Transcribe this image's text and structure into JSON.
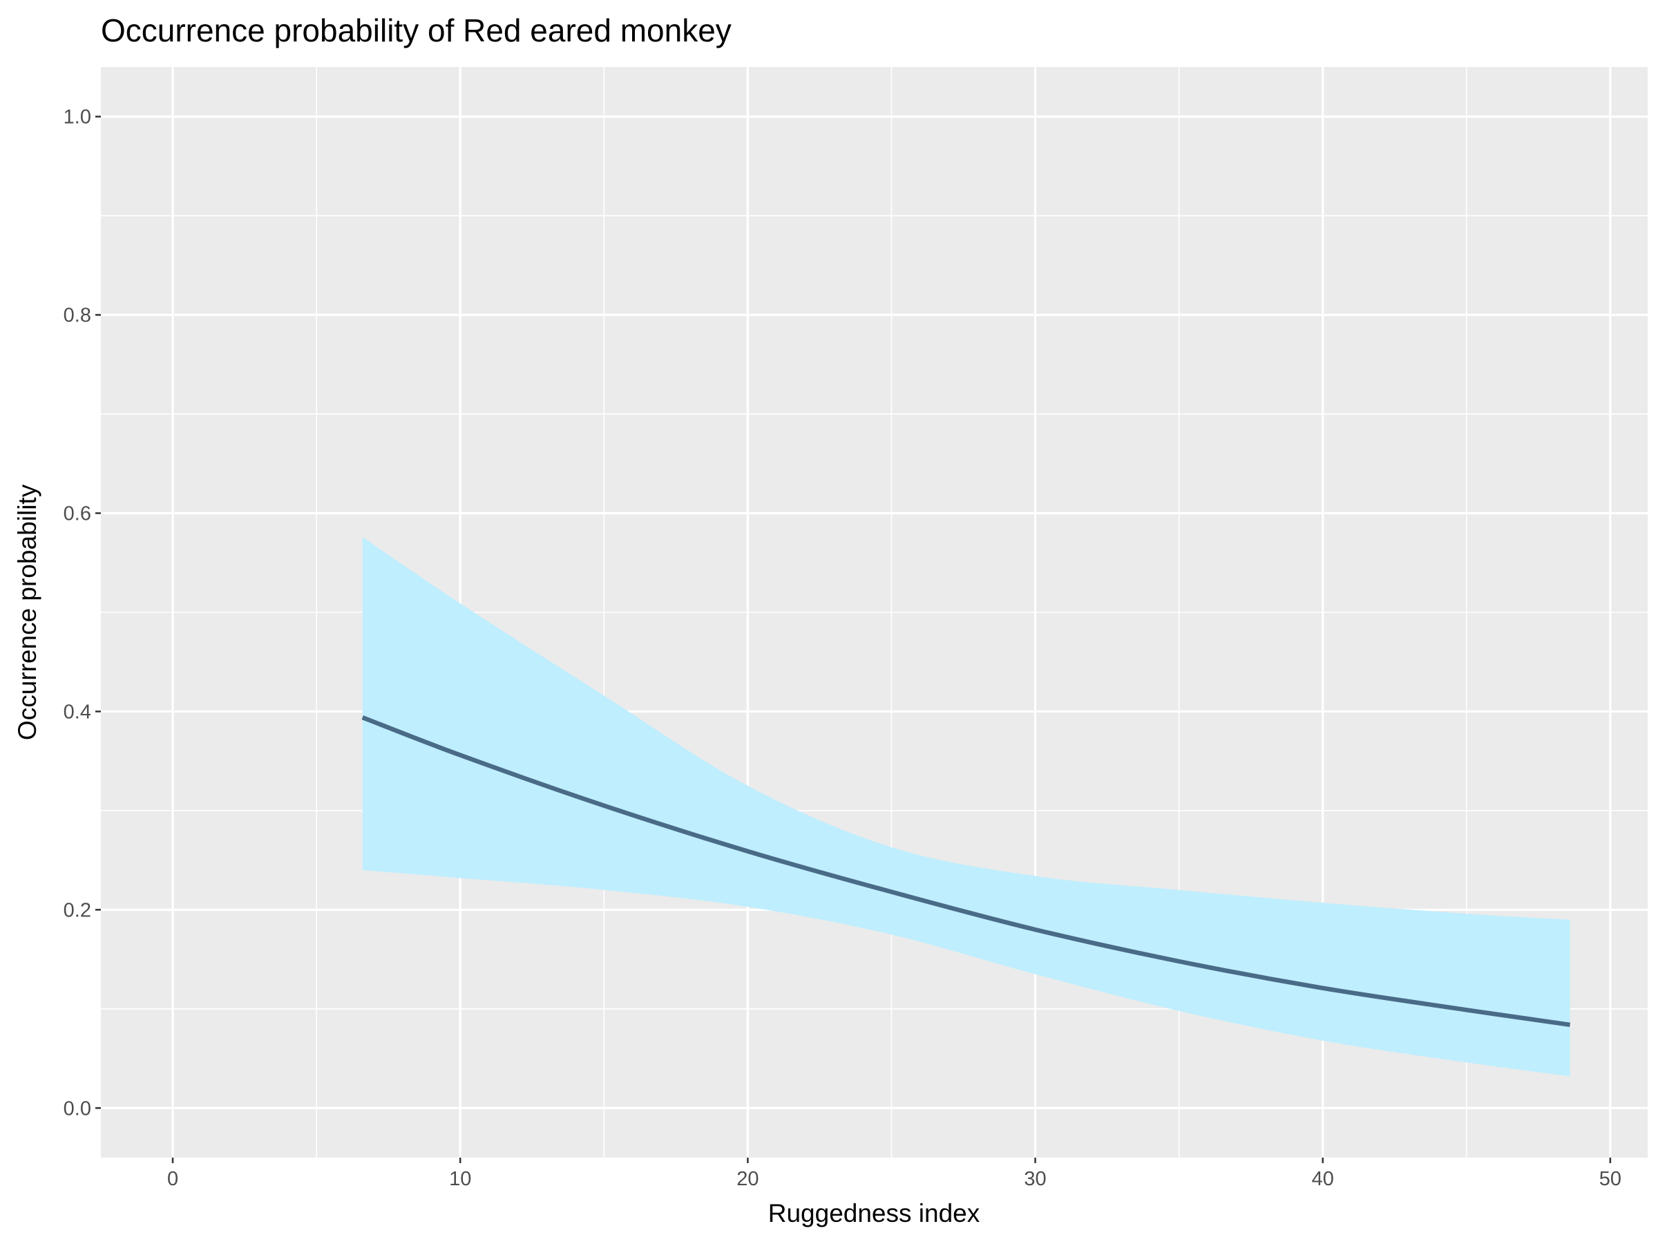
{
  "chart_data": {
    "type": "line",
    "title": "Occurrence probability of Red eared monkey",
    "xlabel": "Ruggedness index",
    "ylabel": "Occurrence probability",
    "xlim": [
      -2.5,
      51.3
    ],
    "ylim": [
      -0.05,
      1.05
    ],
    "x_ticks": [
      0,
      10,
      20,
      30,
      40,
      50
    ],
    "x_tick_labels": [
      "0",
      "10",
      "20",
      "30",
      "40",
      "50"
    ],
    "y_ticks": [
      0.0,
      0.2,
      0.4,
      0.6,
      0.8,
      1.0
    ],
    "y_tick_labels": [
      "0.0",
      "0.2",
      "0.4",
      "0.6",
      "0.8",
      "1.0"
    ],
    "grid": true,
    "legend": "none",
    "colors": {
      "panel_background": "#ebebeb",
      "grid_line": "#ffffff",
      "ribbon_fill": "#bfeefe",
      "line": "#4a6b87"
    },
    "series": [
      {
        "x": [
          6.6,
          10,
          15,
          20,
          25,
          30,
          35,
          40,
          45,
          48.6
        ],
        "y": [
          0.394,
          0.356,
          0.305,
          0.259,
          0.218,
          0.18,
          0.148,
          0.121,
          0.099,
          0.084
        ],
        "ymin": [
          0.24,
          0.232,
          0.22,
          0.203,
          0.175,
          0.135,
          0.098,
          0.068,
          0.046,
          0.032
        ],
        "ymax": [
          0.576,
          0.509,
          0.416,
          0.325,
          0.263,
          0.234,
          0.22,
          0.207,
          0.196,
          0.19
        ]
      }
    ]
  }
}
